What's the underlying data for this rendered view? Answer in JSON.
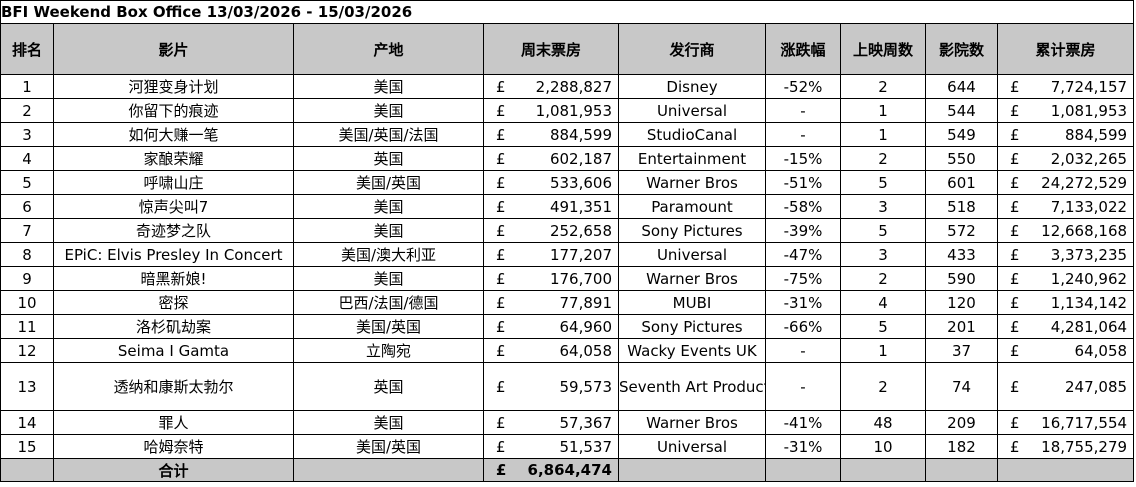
{
  "title": "BFI Weekend Box Office 13/03/2026 - 15/03/2026",
  "currency_symbol": "£",
  "colors": {
    "header_bg": "#c8c8c8",
    "new_entry_text": "#2e75b6",
    "border": "#000000"
  },
  "headers": {
    "rank": "排名",
    "film": "影片",
    "origin": "产地",
    "weekend_gross": "周末票房",
    "distributor": "发行商",
    "change": "涨跌幅",
    "weeks": "上映周数",
    "cinemas": "影院数",
    "total_gross": "累计票房"
  },
  "rows": [
    {
      "rank": "1",
      "film": "河狸变身计划",
      "origin": "美国",
      "weekend": "2,288,827",
      "distributor": "Disney",
      "change": "-52%",
      "weeks": "2",
      "cinemas": "644",
      "total": "7,724,157",
      "new": false
    },
    {
      "rank": "2",
      "film": "你留下的痕迹",
      "origin": "美国",
      "weekend": "1,081,953",
      "distributor": "Universal",
      "change": "-",
      "weeks": "1",
      "cinemas": "544",
      "total": "1,081,953",
      "new": true
    },
    {
      "rank": "3",
      "film": "如何大赚一笔",
      "origin": "美国/英国/法国",
      "weekend": "884,599",
      "distributor": "StudioCanal",
      "change": "-",
      "weeks": "1",
      "cinemas": "549",
      "total": "884,599",
      "new": true
    },
    {
      "rank": "4",
      "film": "家酿荣耀",
      "origin": "英国",
      "weekend": "602,187",
      "distributor": "Entertainment",
      "change": "-15%",
      "weeks": "2",
      "cinemas": "550",
      "total": "2,032,265",
      "new": false
    },
    {
      "rank": "5",
      "film": "呼啸山庄",
      "origin": "美国/英国",
      "weekend": "533,606",
      "distributor": "Warner Bros",
      "change": "-51%",
      "weeks": "5",
      "cinemas": "601",
      "total": "24,272,529",
      "new": false
    },
    {
      "rank": "6",
      "film": "惊声尖叫7",
      "origin": "美国",
      "weekend": "491,351",
      "distributor": "Paramount",
      "change": "-58%",
      "weeks": "3",
      "cinemas": "518",
      "total": "7,133,022",
      "new": false
    },
    {
      "rank": "7",
      "film": "奇迹梦之队",
      "origin": "美国",
      "weekend": "252,658",
      "distributor": "Sony Pictures",
      "change": "-39%",
      "weeks": "5",
      "cinemas": "572",
      "total": "12,668,168",
      "new": false
    },
    {
      "rank": "8",
      "film": "EPiC: Elvis Presley In Concert",
      "origin": "美国/澳大利亚",
      "weekend": "177,207",
      "distributor": "Universal",
      "change": "-47%",
      "weeks": "3",
      "cinemas": "433",
      "total": "3,373,235",
      "new": false
    },
    {
      "rank": "9",
      "film": "暗黑新娘!",
      "origin": "美国",
      "weekend": "176,700",
      "distributor": "Warner Bros",
      "change": "-75%",
      "weeks": "2",
      "cinemas": "590",
      "total": "1,240,962",
      "new": false
    },
    {
      "rank": "10",
      "film": "密探",
      "origin": "巴西/法国/德国",
      "weekend": "77,891",
      "distributor": "MUBI",
      "change": "-31%",
      "weeks": "4",
      "cinemas": "120",
      "total": "1,134,142",
      "new": false
    },
    {
      "rank": "11",
      "film": "洛杉矶劫案",
      "origin": "美国/英国",
      "weekend": "64,960",
      "distributor": "Sony Pictures",
      "change": "-66%",
      "weeks": "5",
      "cinemas": "201",
      "total": "4,281,064",
      "new": false
    },
    {
      "rank": "12",
      "film": "Seima I Gamta",
      "origin": "立陶宛",
      "weekend": "64,058",
      "distributor": "Wacky Events UK",
      "change": "-",
      "weeks": "1",
      "cinemas": "37",
      "total": "64,058",
      "new": true
    },
    {
      "rank": "13",
      "film": "透纳和康斯太勃尔",
      "origin": "英国",
      "weekend": "59,573",
      "distributor": "Seventh Art Production",
      "change": "-",
      "weeks": "2",
      "cinemas": "74",
      "total": "247,085",
      "new": false,
      "tall": true
    },
    {
      "rank": "14",
      "film": "罪人",
      "origin": "美国",
      "weekend": "57,367",
      "distributor": "Warner Bros",
      "change": "-41%",
      "weeks": "48",
      "cinemas": "209",
      "total": "16,717,554",
      "new": false
    },
    {
      "rank": "15",
      "film": "哈姆奈特",
      "origin": "美国/英国",
      "weekend": "51,537",
      "distributor": "Universal",
      "change": "-31%",
      "weeks": "10",
      "cinemas": "182",
      "total": "18,755,279",
      "new": false
    }
  ],
  "total_row": {
    "label": "合计",
    "weekend": "6,864,474"
  }
}
